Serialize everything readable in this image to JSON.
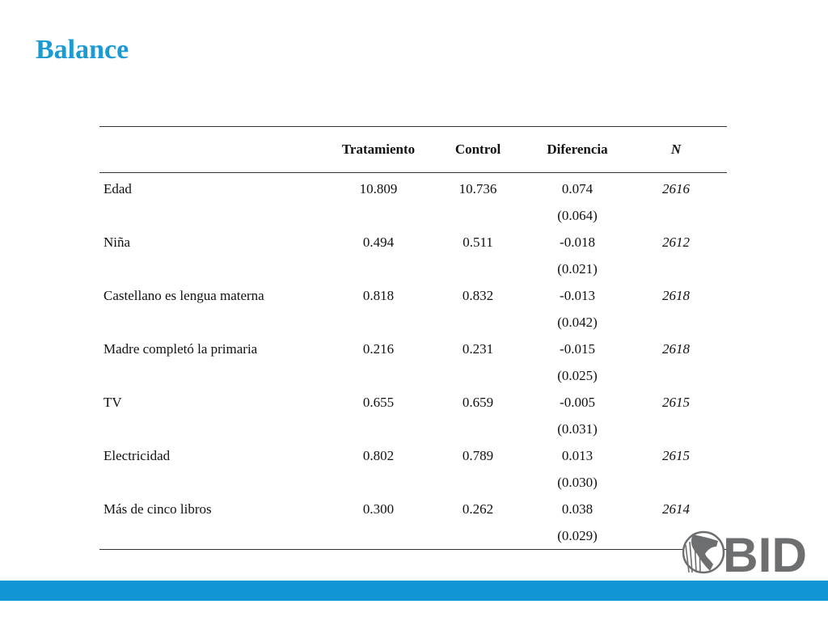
{
  "slide": {
    "title": "Balance"
  },
  "table": {
    "headers": {
      "label": "",
      "treatment": "Tratamiento",
      "control": "Control",
      "difference": "Diferencia",
      "n": "N"
    },
    "rows": [
      {
        "label": "Edad",
        "treatment": "10.809",
        "control": "10.736",
        "difference": "0.074",
        "se": "(0.064)",
        "n": "2616"
      },
      {
        "label": "Niña",
        "treatment": "0.494",
        "control": "0.511",
        "difference": "-0.018",
        "se": "(0.021)",
        "n": "2612"
      },
      {
        "label": "Castellano es lengua materna",
        "treatment": "0.818",
        "control": "0.832",
        "difference": "-0.013",
        "se": "(0.042)",
        "n": "2618"
      },
      {
        "label": "Madre completó la primaria",
        "treatment": "0.216",
        "control": "0.231",
        "difference": "-0.015",
        "se": "(0.025)",
        "n": "2618"
      },
      {
        "label": "TV",
        "treatment": "0.655",
        "control": "0.659",
        "difference": "-0.005",
        "se": "(0.031)",
        "n": "2615"
      },
      {
        "label": "Electricidad",
        "treatment": "0.802",
        "control": "0.789",
        "difference": "0.013",
        "se": "(0.030)",
        "n": "2615"
      },
      {
        "label": "Más de cinco libros",
        "treatment": "0.300",
        "control": "0.262",
        "difference": "0.038",
        "se": "(0.029)",
        "n": "2614"
      }
    ]
  },
  "logo": {
    "text": "BID",
    "icon": "globe-americas-icon",
    "color": "#6d6e70"
  },
  "colors": {
    "title": "#1b9bd1",
    "bottom_bar": "#1195d3"
  }
}
